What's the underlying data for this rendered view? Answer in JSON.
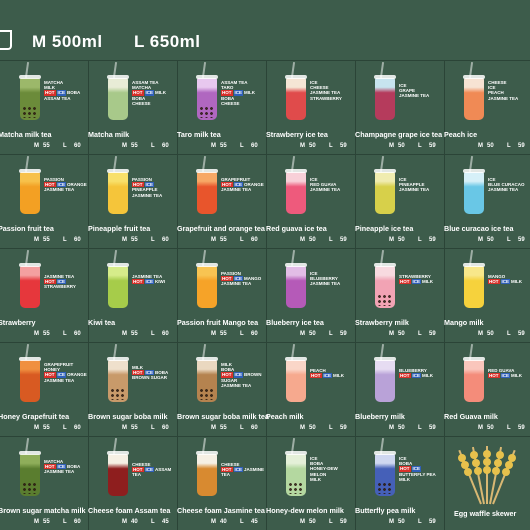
{
  "header": {
    "m_label": "M 500ml",
    "l_label": "L 650ml"
  },
  "rows": [
    [
      {
        "name": "Matcha milk tea",
        "tags": [
          "MATCHA",
          "MILK",
          "BOBA",
          "ASSAM TEA"
        ],
        "hot": true,
        "cold": true,
        "color": "#6b8b3a",
        "top": "#9cb86a",
        "boba": true,
        "m": "55",
        "l": "60"
      },
      {
        "name": "Matcha milk",
        "tags": [
          "ASSAM TEA",
          "MATCHA",
          "MILK",
          "BOBA",
          "CHEESE"
        ],
        "hot": true,
        "cold": true,
        "color": "#a8c98a",
        "top": "#e8ecd6",
        "boba": false,
        "m": "55",
        "l": "60"
      },
      {
        "name": "Taro milk tea",
        "tags": [
          "ASSAM TEA",
          "TARO",
          "MILK",
          "BOBA",
          "CHEESE"
        ],
        "hot": true,
        "cold": true,
        "color": "#b067c0",
        "top": "#e8c8ef",
        "boba": true,
        "m": "55",
        "l": "60"
      },
      {
        "name": "Strawberry ice tea",
        "tags": [
          "ICE",
          "CHEESE",
          "JASMINE TEA",
          "STRAWBERRY"
        ],
        "hot": false,
        "cold": false,
        "color": "#e04b4b",
        "top": "#f5e5d5",
        "boba": false,
        "m": "50",
        "l": "59"
      },
      {
        "name": "Champagne grape  ice tea",
        "tags": [
          "ICE",
          "GRAPE",
          "JASMINE TEA"
        ],
        "hot": false,
        "cold": false,
        "color": "#b53b5c",
        "top": "#c7e4ef",
        "boba": false,
        "m": "50",
        "l": "59"
      },
      {
        "name": "Peach ice",
        "tags": [
          "CHEESE",
          "ICE",
          "PEACH",
          "JASMINE TEA"
        ],
        "hot": false,
        "cold": false,
        "color": "#f08a55",
        "top": "#f7e3d3",
        "boba": false,
        "m": "50",
        "l": "59"
      }
    ],
    [
      {
        "name": "Passion fruit  tea",
        "tags": [
          "PASSION",
          "ORANGE",
          "JASMINE TEA"
        ],
        "hot": true,
        "cold": true,
        "color": "#f3a023",
        "top": "#f7c14a",
        "boba": false,
        "m": "55",
        "l": "60"
      },
      {
        "name": "Pineapple fruit tea",
        "tags": [
          "PASSION",
          "PINEAPPLE",
          "JASMINE TEA"
        ],
        "hot": true,
        "cold": true,
        "color": "#f5c53a",
        "top": "#f8e06a",
        "boba": false,
        "m": "55",
        "l": "60"
      },
      {
        "name": "Grapefruit and orange tea",
        "tags": [
          "GRAPEFRUIT",
          "ORANGE",
          "JASMINE TEA"
        ],
        "hot": true,
        "cold": true,
        "color": "#e8552c",
        "top": "#f7a866",
        "boba": false,
        "m": "55",
        "l": "60"
      },
      {
        "name": "Red guava ice tea",
        "tags": [
          "ICE",
          "RED GUAVA",
          "JASMINE TEA"
        ],
        "hot": false,
        "cold": false,
        "color": "#ee5a7c",
        "top": "#f8d0d8",
        "boba": false,
        "m": "50",
        "l": "59"
      },
      {
        "name": "Pineapple ice tea",
        "tags": [
          "ICE",
          "PINEAPPLE",
          "JASMINE TEA"
        ],
        "hot": false,
        "cold": false,
        "color": "#d7d04a",
        "top": "#f0ecb0",
        "boba": false,
        "m": "50",
        "l": "59"
      },
      {
        "name": "Blue curacao ice tea",
        "tags": [
          "ICE",
          "BLUE CURACAO",
          "JASMINE TEA"
        ],
        "hot": false,
        "cold": false,
        "color": "#69c7e6",
        "top": "#d6f0f8",
        "boba": false,
        "m": "50",
        "l": "59"
      }
    ],
    [
      {
        "name": "Strawberry",
        "tags": [
          "JASMINE TEA",
          "STRAWBERRY"
        ],
        "hot": true,
        "cold": true,
        "color": "#e6373c",
        "top": "#f4a0a0",
        "boba": false,
        "m": "55",
        "l": "60"
      },
      {
        "name": "Kiwi tea",
        "tags": [
          "JASMINE TEA",
          "KIWI"
        ],
        "hot": true,
        "cold": true,
        "color": "#a6cc4a",
        "top": "#d6ec8a",
        "boba": false,
        "m": "55",
        "l": "60"
      },
      {
        "name": "Passion fruit Mango tea",
        "tags": [
          "PASSION",
          "MANGO",
          "JASMINE TEA"
        ],
        "hot": true,
        "cold": true,
        "color": "#f6a328",
        "top": "#f8c452",
        "boba": false,
        "m": "55",
        "l": "60"
      },
      {
        "name": "Blueberry ice tea",
        "tags": [
          "ICE",
          "BLUEBERRY",
          "JASMINE TEA"
        ],
        "hot": false,
        "cold": false,
        "color": "#b55ab8",
        "top": "#e2bde6",
        "boba": false,
        "m": "50",
        "l": "59"
      },
      {
        "name": "Strawberry milk",
        "tags": [
          "STRAWBERRY",
          "MILK"
        ],
        "hot": true,
        "cold": true,
        "color": "#f2a3b4",
        "top": "#f8dae0",
        "boba": true,
        "m": "50",
        "l": "59"
      },
      {
        "name": "Mango milk",
        "tags": [
          "MANGO",
          "MILK"
        ],
        "hot": true,
        "cold": true,
        "color": "#f6d23c",
        "top": "#f8e78a",
        "boba": false,
        "m": "50",
        "l": "59"
      }
    ],
    [
      {
        "name": "Honey Grapefruit tea",
        "tags": [
          "GRAPEFRUIT",
          "HONEY",
          "ORANGE",
          "JASMINE TEA"
        ],
        "hot": true,
        "cold": true,
        "color": "#d85a22",
        "top": "#f09040",
        "boba": false,
        "m": "55",
        "l": "60"
      },
      {
        "name": "Brown sugar boba milk",
        "tags": [
          "MILK",
          "BOBA",
          "BROWN SUGAR"
        ],
        "hot": true,
        "cold": true,
        "color": "#c89a6a",
        "top": "#efe0cc",
        "boba": true,
        "m": "55",
        "l": "60"
      },
      {
        "name": "Brown sugar boba milk tea",
        "tags": [
          "MILK",
          "BOBA",
          "BROWN SUGAR",
          "JASMINE TEA"
        ],
        "hot": true,
        "cold": true,
        "color": "#b5834f",
        "top": "#ead8c0",
        "boba": true,
        "m": "55",
        "l": "60"
      },
      {
        "name": "Peach milk",
        "tags": [
          "PEACH",
          "MILK"
        ],
        "hot": true,
        "cold": true,
        "color": "#f6a98e",
        "top": "#fad6c8",
        "boba": false,
        "m": "50",
        "l": "59"
      },
      {
        "name": "Blueberry milk",
        "tags": [
          "BLUEBERRY",
          "MILK"
        ],
        "hot": true,
        "cold": true,
        "color": "#b9a2d8",
        "top": "#e6dcf2",
        "boba": false,
        "m": "50",
        "l": "59"
      },
      {
        "name": "Red Guava milk",
        "tags": [
          "RED GUAVA",
          "MILK"
        ],
        "hot": true,
        "cold": true,
        "color": "#f48c7a",
        "top": "#fac6bc",
        "boba": false,
        "m": "50",
        "l": "59"
      }
    ],
    [
      {
        "name": "Brown sugar matcha milk",
        "tags": [
          "MATCHA",
          "BOBA",
          "JASMINE TEA"
        ],
        "hot": true,
        "cold": true,
        "color": "#5a7d2f",
        "top": "#8fae5a",
        "boba": true,
        "m": "55",
        "l": "60"
      },
      {
        "name": "Cheese foam Assam tea",
        "tags": [
          "CHEESE",
          "ASSAM TEA"
        ],
        "hot": true,
        "cold": true,
        "color": "#8e1e1e",
        "top": "#f6f0e4",
        "boba": false,
        "m": "40",
        "l": "45"
      },
      {
        "name": "Cheese foam Jasmine tea",
        "tags": [
          "CHEESE",
          "JASMINE TEA"
        ],
        "hot": true,
        "cold": true,
        "color": "#d88a30",
        "top": "#f6f0e4",
        "boba": false,
        "m": "40",
        "l": "45"
      },
      {
        "name": "Honey-dew melon milk",
        "tags": [
          "ICE",
          "BOBA",
          "HONEY-DEW MELON",
          "MILK"
        ],
        "hot": false,
        "cold": false,
        "color": "#b4d8a0",
        "top": "#e4f0d8",
        "boba": true,
        "m": "50",
        "l": "59"
      },
      {
        "name": "Butterfly pea milk",
        "tags": [
          "ICE",
          "BOBA",
          "BUTTERFLY PEA",
          "MILK"
        ],
        "hot": true,
        "cold": true,
        "color": "#4560b8",
        "top": "#cfd7f0",
        "boba": true,
        "m": "50",
        "l": "59"
      },
      {
        "name": "Egg waffle skewer",
        "tags": [],
        "hot": false,
        "cold": false,
        "color": "",
        "top": "",
        "boba": false,
        "m": "",
        "l": "",
        "skewer": true
      }
    ]
  ],
  "price_labels": {
    "m": "M",
    "l": "L"
  },
  "badges": {
    "hot": "HOT",
    "cold": "ICE"
  }
}
